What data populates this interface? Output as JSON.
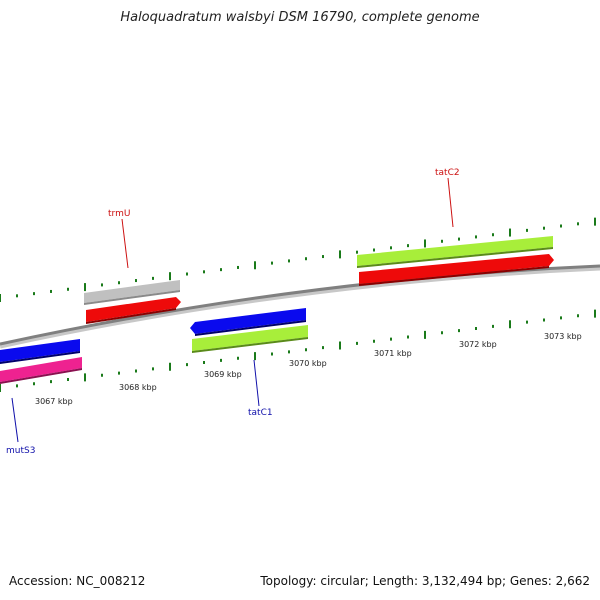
{
  "header": {
    "title": "Haloquadratum walsbyi DSM 16790, complete genome"
  },
  "footer": {
    "accession": "Accession: NC_008212",
    "summary": "Topology: circular; Length: 3,132,494 bp; Genes: 2,662"
  },
  "colors": {
    "tick": "#1a7a1a",
    "backbone": "#808080",
    "blue": "#0a0aee",
    "red": "#ee0a0a",
    "green": "#a8ee3a",
    "pink": "#ee2290",
    "gray": "#c0c0c0",
    "label_blue": "#1010aa",
    "label_red": "#cc1010"
  },
  "map": {
    "kbp_labels": [
      "3067 kbp",
      "3068 kbp",
      "3069 kbp",
      "3070 kbp",
      "3071 kbp",
      "3072 kbp",
      "3073 kbp"
    ],
    "gene_labels": [
      "trmU",
      "tatC2",
      "tatC1",
      "mutS3"
    ]
  }
}
